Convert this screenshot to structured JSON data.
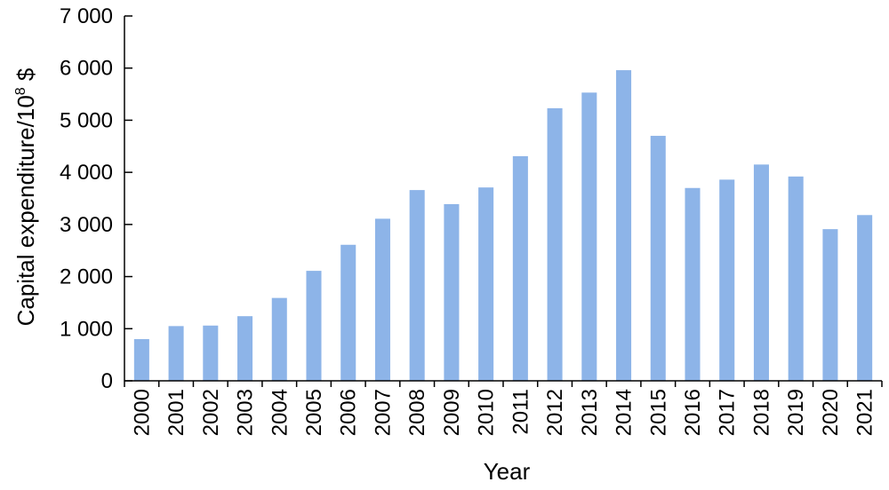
{
  "chart_data": {
    "type": "bar",
    "title": "",
    "xlabel": "Year",
    "ylabel": {
      "base": "Capital expenditure/10",
      "sup": "8",
      "unit": " $"
    },
    "categories": [
      "2000",
      "2001",
      "2002",
      "2003",
      "2004",
      "2005",
      "2006",
      "2007",
      "2008",
      "2009",
      "2010",
      "2011",
      "2012",
      "2013",
      "2014",
      "2015",
      "2016",
      "2017",
      "2018",
      "2019",
      "2020",
      "2021"
    ],
    "values": [
      800,
      1050,
      1060,
      1240,
      1590,
      2110,
      2610,
      3110,
      3660,
      3390,
      3710,
      4310,
      5230,
      5530,
      5960,
      4700,
      3700,
      3860,
      4150,
      3920,
      2910,
      3180
    ],
    "ylim": [
      0,
      7000
    ],
    "yticks": [
      0,
      1000,
      2000,
      3000,
      4000,
      5000,
      6000,
      7000
    ],
    "ytick_labels": [
      "0",
      "1 000",
      "2 000",
      "3 000",
      "4 000",
      "5 000",
      "6 000",
      "7 000"
    ],
    "bar_color": "#8db4e8",
    "grid": false,
    "legend": "none"
  }
}
